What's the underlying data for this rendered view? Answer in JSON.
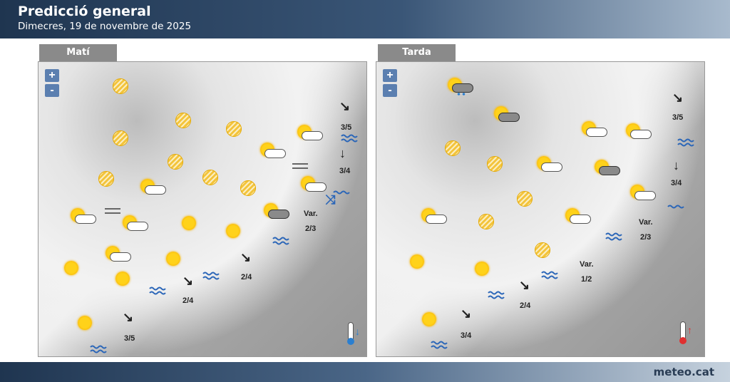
{
  "header": {
    "title": "Predicció general",
    "subtitle": "Dimecres, 19 de novembre de 2025"
  },
  "footer": {
    "brand": "meteo.cat"
  },
  "zoom": {
    "plus": "+",
    "minus": "-"
  },
  "panels": [
    {
      "tab": "Matí",
      "labels": {
        "w1": "3/5",
        "w2": "3/4",
        "w3": "2/4",
        "w4": "2/4",
        "w5": "3/5",
        "var": "Var.",
        "var_val": "2/3"
      },
      "temperature_trend": "down",
      "trend_color": "#2b7fd0"
    },
    {
      "tab": "Tarda",
      "labels": {
        "w1": "3/5",
        "w2": "3/4",
        "w3": "2/4",
        "w4": "3/4",
        "var1": "Var.",
        "var1_val": "2/3",
        "var2": "Var.",
        "var2_val": "1/2"
      },
      "temperature_trend": "up",
      "trend_color": "#e03030"
    }
  ],
  "colors": {
    "header": "#1f3550",
    "sea_waves": "#2b66b8",
    "sun": "#ffd21a"
  }
}
